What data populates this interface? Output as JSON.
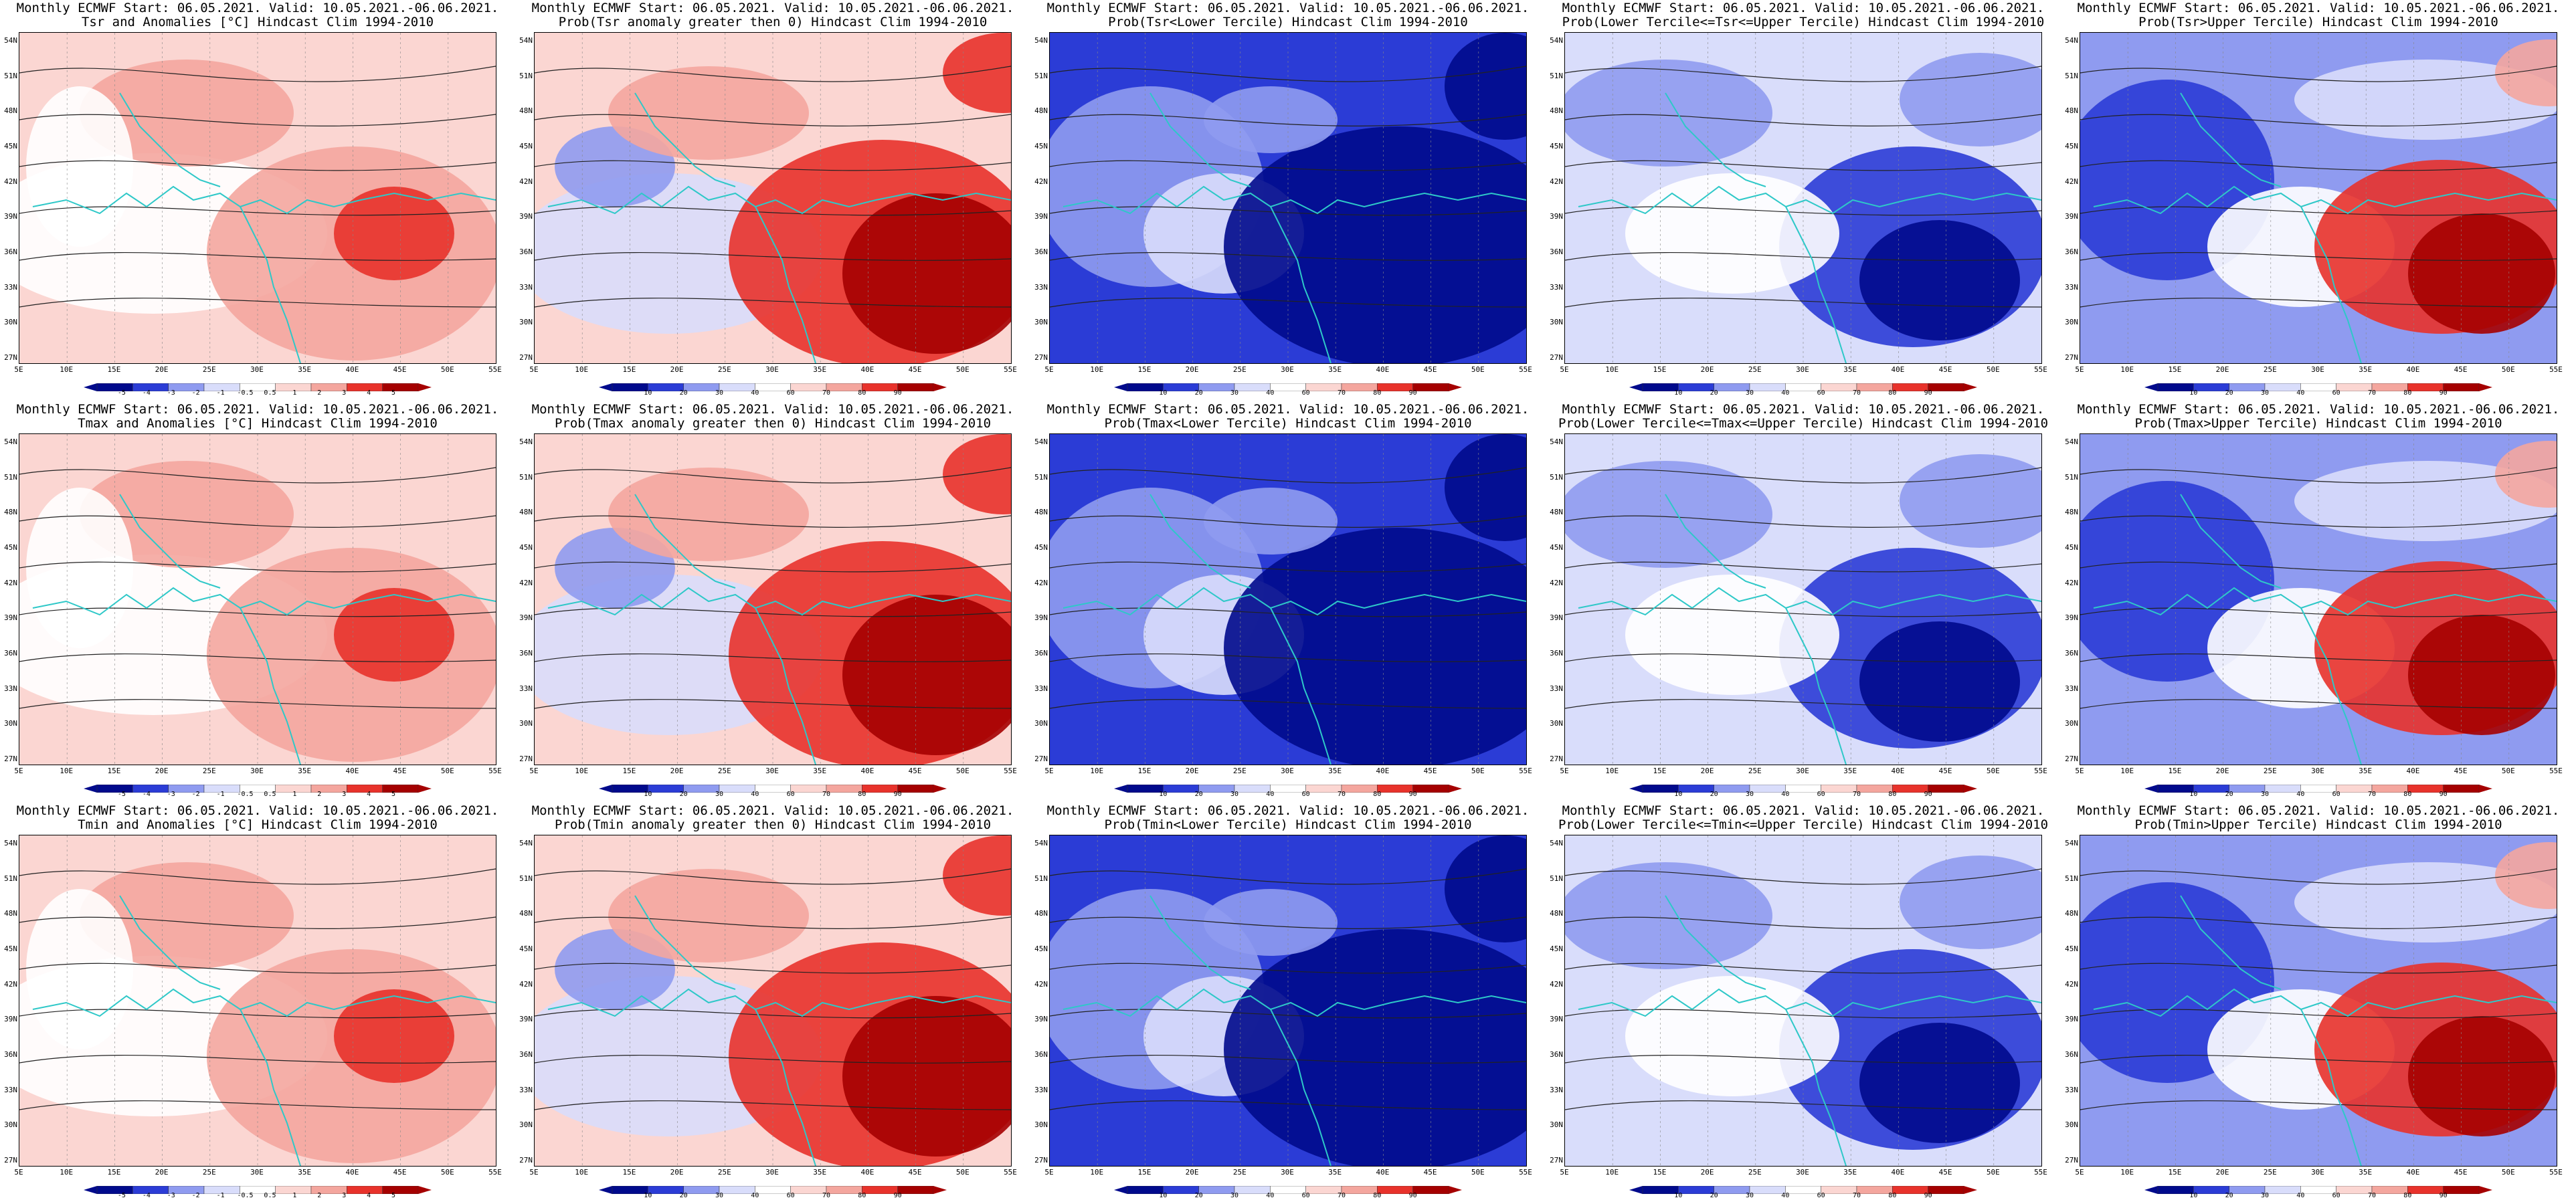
{
  "colors": {
    "red_dark": "#a50000",
    "red": "#e8322b",
    "red_light": "#f4a69e",
    "pink": "#fbd6d2",
    "blue_dark": "#000a8c",
    "blue": "#2b3cd6",
    "blue_light": "#8f9bf0",
    "blue_pale": "#d9ddfb",
    "contour": "#222222",
    "coast": "#2ec8c8",
    "white": "#ffffff"
  },
  "header": "Monthly ECMWF Start: 06.05.2021. Valid: 10.05.2021.-06.06.2021.",
  "lat_labels": [
    "54N",
    "51N",
    "48N",
    "45N",
    "42N",
    "39N",
    "36N",
    "33N",
    "30N",
    "27N"
  ],
  "lon_labels": [
    "5E",
    "10E",
    "15E",
    "20E",
    "25E",
    "30E",
    "35E",
    "40E",
    "45E",
    "50E",
    "55E"
  ],
  "anom_ticks": [
    "-5",
    "-4",
    "-3",
    "-2",
    "-1",
    "-0.5",
    "0.5",
    "1",
    "2",
    "3",
    "4",
    "5"
  ],
  "prob_ticks": [
    "10",
    "20",
    "30",
    "40",
    "60",
    "70",
    "80",
    "90"
  ],
  "panels": [
    {
      "subtitle": "Tsr and Anomalies [°C] Hindcast Clim 1994-2010",
      "type": "anom",
      "scheme": "redweak"
    },
    {
      "subtitle": "Prob(Tsr anomaly greater then 0) Hindcast Clim 1994-2010",
      "type": "prob",
      "scheme": "redstrong"
    },
    {
      "subtitle": "Prob(Tsr<Lower Tercile) Hindcast Clim 1994-2010",
      "type": "prob",
      "scheme": "bluestrong"
    },
    {
      "subtitle": "Prob(Lower Tercile<=Tsr<=Upper Tercile) Hindcast Clim 1994-2010",
      "type": "prob",
      "scheme": "bluemix"
    },
    {
      "subtitle": "Prob(Tsr>Upper Tercile) Hindcast Clim 1994-2010",
      "type": "prob",
      "scheme": "redblue"
    },
    {
      "subtitle": "Tmax and Anomalies [°C] Hindcast Clim 1994-2010",
      "type": "anom",
      "scheme": "redweak"
    },
    {
      "subtitle": "Prob(Tmax anomaly greater then 0) Hindcast Clim 1994-2010",
      "type": "prob",
      "scheme": "redstrong"
    },
    {
      "subtitle": "Prob(Tmax<Lower Tercile) Hindcast Clim 1994-2010",
      "type": "prob",
      "scheme": "bluestrong"
    },
    {
      "subtitle": "Prob(Lower Tercile<=Tmax<=Upper Tercile) Hindcast Clim 1994-2010",
      "type": "prob",
      "scheme": "bluemix"
    },
    {
      "subtitle": "Prob(Tmax>Upper Tercile) Hindcast Clim 1994-2010",
      "type": "prob",
      "scheme": "redblue"
    },
    {
      "subtitle": "Tmin and Anomalies [°C] Hindcast Clim 1994-2010",
      "type": "anom",
      "scheme": "redweak"
    },
    {
      "subtitle": "Prob(Tmin anomaly greater then 0) Hindcast Clim 1994-2010",
      "type": "prob",
      "scheme": "redstrong"
    },
    {
      "subtitle": "Prob(Tmin<Lower Tercile) Hindcast Clim 1994-2010",
      "type": "prob",
      "scheme": "bluestrong"
    },
    {
      "subtitle": "Prob(Lower Tercile<=Tmin<=Upper Tercile) Hindcast Clim 1994-2010",
      "type": "prob",
      "scheme": "bluemix"
    },
    {
      "subtitle": "Prob(Tmin>Upper Tercile) Hindcast Clim 1994-2010",
      "type": "prob",
      "scheme": "redblue"
    }
  ]
}
